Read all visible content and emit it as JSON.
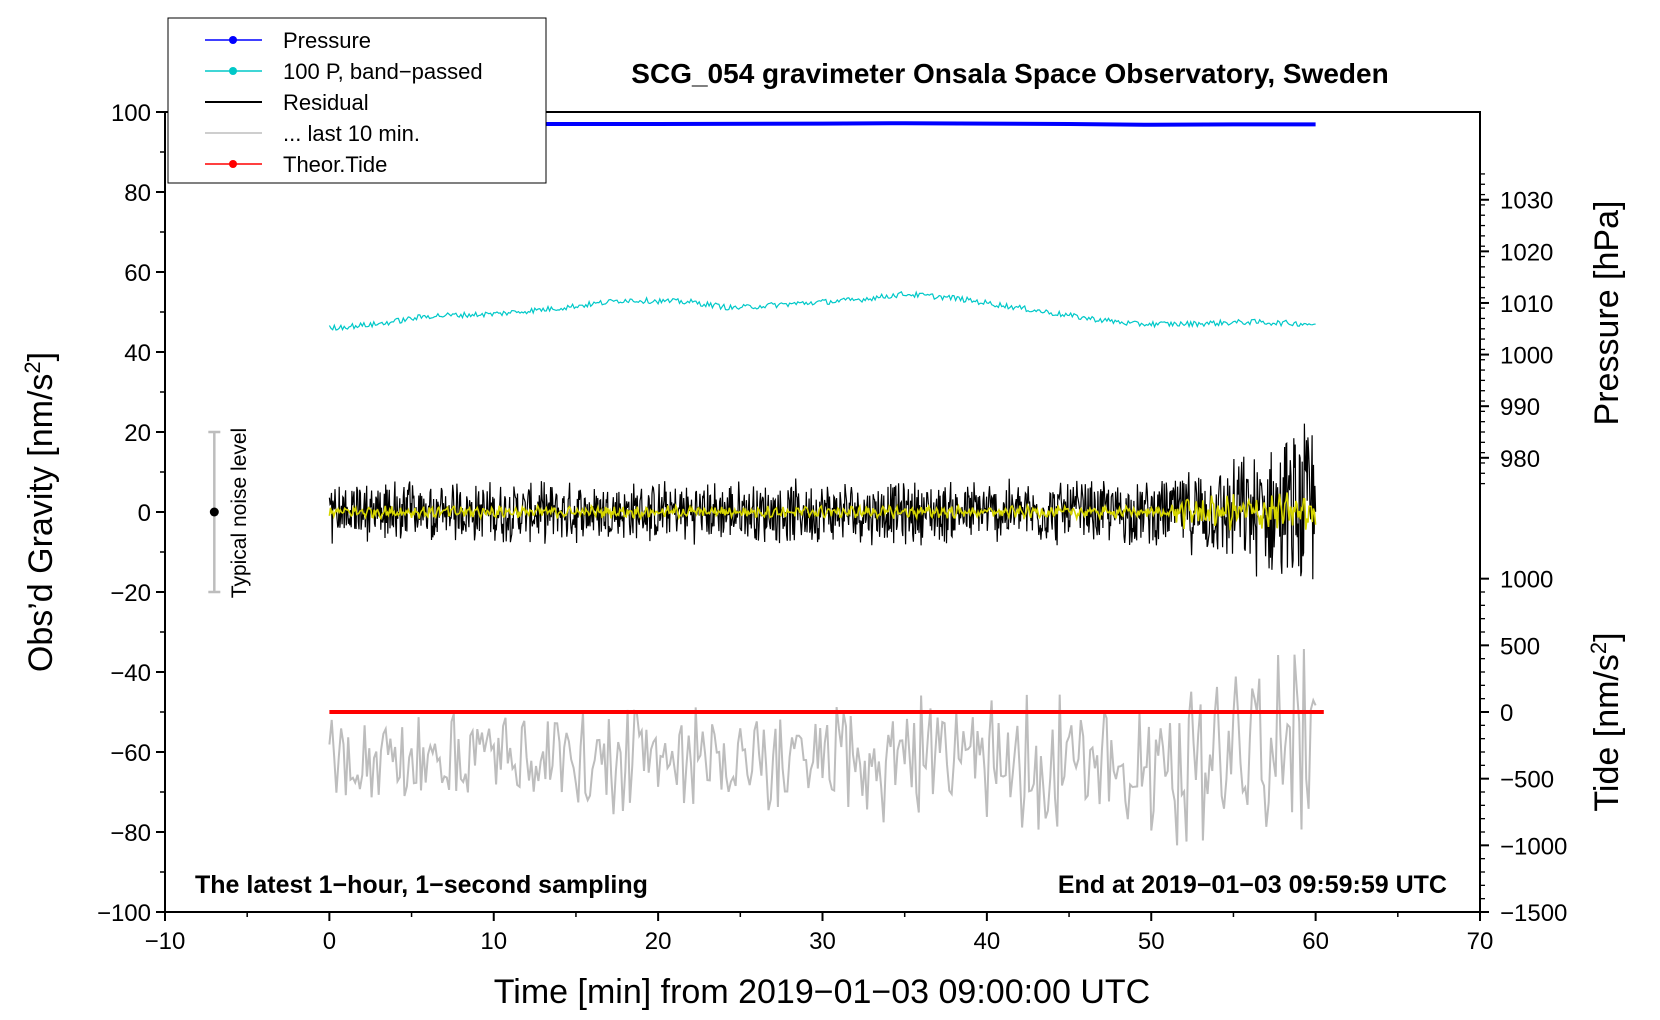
{
  "chart_data": {
    "type": "line",
    "title": "SCG_054 gravimeter Onsala Space Observatory, Sweden",
    "xlabel": "Time [min] from 2019−01−03 09:00:00 UTC",
    "ylabel_left": "Obs’d Gravity [nm/s",
    "ylabel_left_sup": "2",
    "ylabel_left_close": "]",
    "ylabel_right_pressure": "Pressure [hPa]",
    "ylabel_right_tide": "Tide [nm/s",
    "ylabel_right_tide_sup": "2",
    "ylabel_right_tide_close": "]",
    "xlim": [
      -10,
      70
    ],
    "ylim": [
      -100,
      100
    ],
    "x_ticks": [
      "−10",
      "0",
      "10",
      "20",
      "30",
      "40",
      "50",
      "60",
      "70"
    ],
    "y_ticks": [
      "100",
      "80",
      "60",
      "40",
      "20",
      "0",
      "−20",
      "−40",
      "−60",
      "−80",
      "−100"
    ],
    "pressure_ticks": [
      "1030",
      "1020",
      "1010",
      "1000",
      "990",
      "980"
    ],
    "pressure_tick_values": [
      1030,
      1020,
      1010,
      1000,
      990,
      980
    ],
    "pressure_axis_map": {
      "value_at_gravity_20": 985,
      "hpa_per_gravity_unit": 0.775
    },
    "tide_ticks": [
      "1000",
      "500",
      "0",
      "−500",
      "−1000",
      "−1500"
    ],
    "tide_tick_values": [
      1000,
      500,
      0,
      -500,
      -1000,
      -1500
    ],
    "tide_axis_map": {
      "gravity_at_tide_0": -50,
      "tide_per_gravity_unit": 30
    },
    "note_left": "The latest 1−hour, 1−second sampling",
    "note_right": "End at 2019−01−03 09:59:59 UTC",
    "noise_label": "Typical noise level",
    "noise_bar": {
      "x": -7,
      "center": 0,
      "half_range": 20
    },
    "legend": [
      {
        "label": "Pressure",
        "color": "#0000ff",
        "marker": true
      },
      {
        "label": "100 P, band−passed",
        "color": "#00c8c8",
        "marker": true
      },
      {
        "label": "Residual",
        "color": "#000000",
        "marker": false
      },
      {
        "label": "... last 10 min.",
        "color": "#bdbdbd",
        "marker": false
      },
      {
        "label": "Theor.Tide",
        "color": "#ff0000",
        "marker": true
      }
    ],
    "series": [
      {
        "name": "Pressure",
        "color": "#0000ff",
        "axis": "gravity",
        "x": [
          0,
          10,
          20,
          30,
          35,
          40,
          45,
          50,
          55,
          60
        ],
        "values": [
          97,
          97,
          97,
          97.1,
          97.2,
          97.1,
          97,
          96.8,
          96.9,
          96.9
        ]
      },
      {
        "name": "100 P, band−passed",
        "color": "#00c8c8",
        "axis": "gravity",
        "x": [
          0,
          3,
          6,
          10,
          14,
          18,
          22,
          24.5,
          28,
          32,
          35,
          38,
          42,
          46,
          49,
          52,
          56,
          60
        ],
        "values": [
          46,
          47,
          49,
          49.5,
          51,
          53,
          52.5,
          51,
          52,
          53,
          54.5,
          53.5,
          51,
          48.5,
          47,
          47,
          47.5,
          47
        ]
      },
      {
        "name": "Residual",
        "color": "#000000",
        "axis": "gravity",
        "x_range": [
          0,
          60
        ],
        "envelope": [
          {
            "x": 0,
            "amp": 8
          },
          {
            "x": 50,
            "amp": 9
          },
          {
            "x": 54,
            "amp": 13
          },
          {
            "x": 57,
            "amp": 18
          },
          {
            "x": 60,
            "amp": 26
          }
        ]
      },
      {
        "name": "Residual smoothed",
        "color": "#d6d600",
        "axis": "gravity",
        "x_range": [
          0,
          60
        ],
        "envelope": [
          {
            "x": 0,
            "amp": 1.5
          },
          {
            "x": 51,
            "amp": 1.5
          },
          {
            "x": 52,
            "amp": 4
          },
          {
            "x": 60,
            "amp": 5
          }
        ]
      },
      {
        "name": "... last 10 min.",
        "color": "#bdbdbd",
        "axis": "gravity",
        "x_range": [
          0,
          60
        ],
        "center": -62,
        "envelope": [
          {
            "x": 0,
            "amp": 8
          },
          {
            "x": 30,
            "amp": 12
          },
          {
            "x": 50,
            "amp": 15
          },
          {
            "x": 60,
            "amp": 24
          }
        ]
      },
      {
        "name": "Theor.Tide",
        "color": "#ff0000",
        "axis": "gravity",
        "x": [
          0,
          60.5
        ],
        "values": [
          -50,
          -50
        ]
      }
    ]
  }
}
